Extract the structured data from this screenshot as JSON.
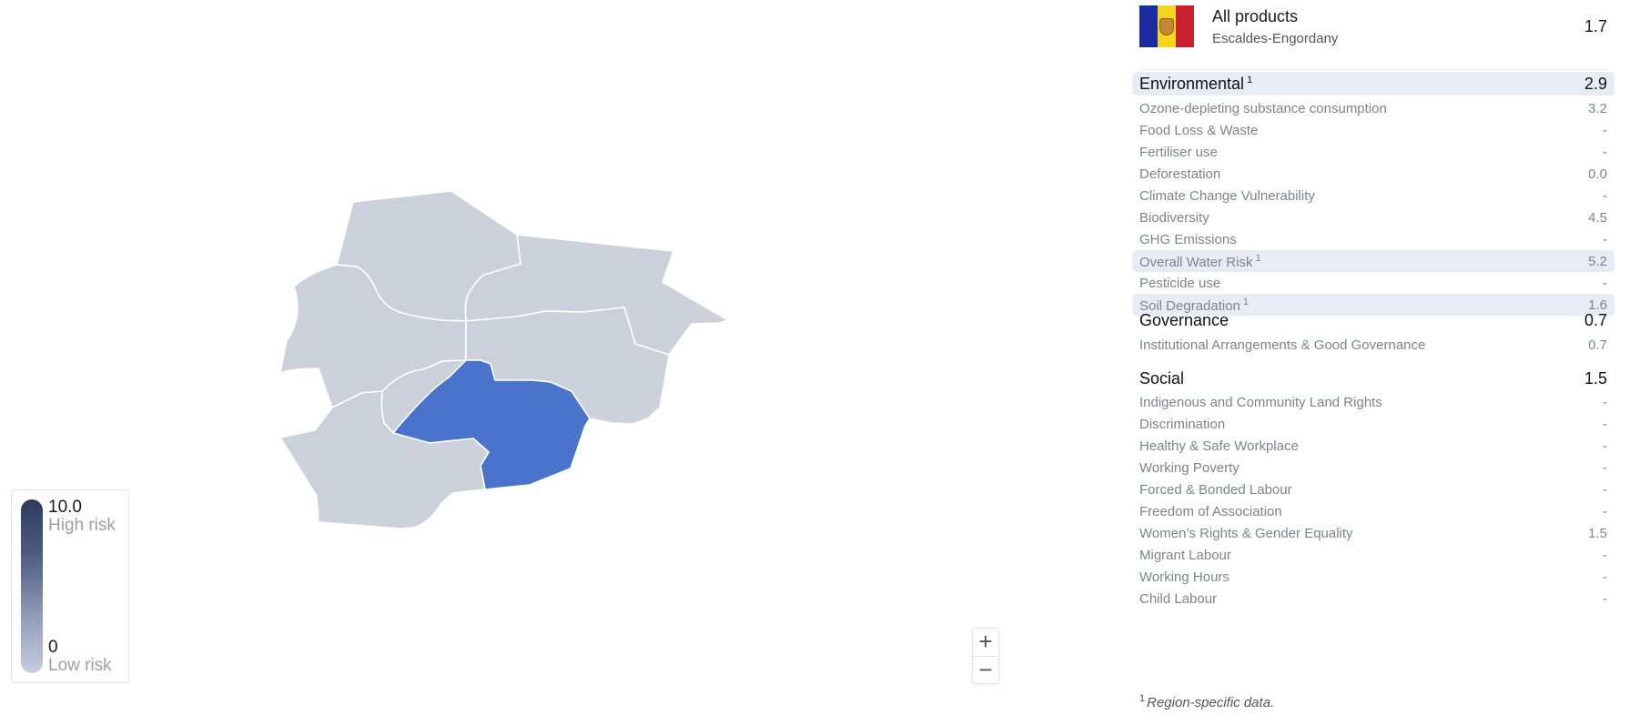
{
  "legend": {
    "max_value": "10.0",
    "max_label": "High risk",
    "min_value": "0",
    "min_label": "Low risk"
  },
  "zoom": {
    "in_label": "+",
    "out_label": "−"
  },
  "map": {
    "selected_region": "Escaldes-Engordany",
    "fill_default": "#cbd0db",
    "fill_selected": "#4a74cc",
    "border": "#ffffff"
  },
  "header": {
    "title": "All products",
    "subtitle": "Escaldes-Engordany",
    "score": "1.7",
    "flag_colors": [
      "#1b2a9c",
      "#f3d71c",
      "#c8202f"
    ]
  },
  "sections": [
    {
      "name": "Environmental",
      "sup": "1",
      "score": "2.9",
      "highlight": true,
      "items": [
        {
          "label": "Ozone-depleting substance consumption",
          "value": "3.2"
        },
        {
          "label": "Food Loss & Waste",
          "value": "-"
        },
        {
          "label": "Fertiliser use",
          "value": "-"
        },
        {
          "label": "Deforestation",
          "value": "0.0"
        },
        {
          "label": "Climate Change Vulnerability",
          "value": "-"
        },
        {
          "label": "Biodiversity",
          "value": "4.5"
        },
        {
          "label": "GHG Emissions",
          "value": "-"
        },
        {
          "label": "Overall Water Risk",
          "sup": "1",
          "value": "5.2",
          "highlight": true
        },
        {
          "label": "Pesticide use",
          "value": "-"
        },
        {
          "label": "Soil Degradation",
          "sup": "1",
          "value": "1.6",
          "highlight": true
        }
      ]
    },
    {
      "name": "Governance",
      "score": "0.7",
      "items": [
        {
          "label": "Institutional Arrangements & Good Governance",
          "value": "0.7"
        }
      ]
    },
    {
      "name": "Social",
      "score": "1.5",
      "items": [
        {
          "label": "Indigenous and Community Land Rights",
          "value": "-"
        },
        {
          "label": "Discrimination",
          "value": "-"
        },
        {
          "label": "Healthy & Safe Workplace",
          "value": "-"
        },
        {
          "label": "Working Poverty",
          "value": "-"
        },
        {
          "label": "Forced & Bonded Labour",
          "value": "-"
        },
        {
          "label": "Freedom of Association",
          "value": "-"
        },
        {
          "label": "Women’s Rights & Gender Equality",
          "value": "1.5"
        },
        {
          "label": "Migrant Labour",
          "value": "-"
        },
        {
          "label": "Working Hours",
          "value": "-"
        },
        {
          "label": "Child Labour",
          "value": "-"
        }
      ]
    }
  ],
  "footnote": {
    "sup": "1",
    "text": "Region-specific data."
  }
}
